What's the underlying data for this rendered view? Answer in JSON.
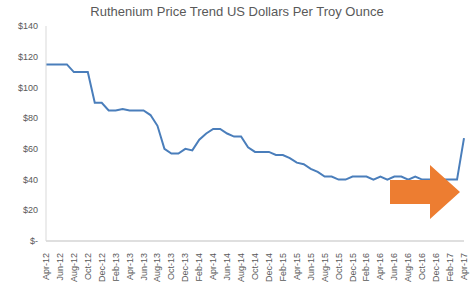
{
  "chart_data": {
    "type": "line",
    "title": "Ruthenium Price Trend US Dollars Per Troy Ounce",
    "categories": [
      "Apr-12",
      null,
      "Jun-12",
      null,
      "Aug-12",
      null,
      "Oct-12",
      null,
      "Dec-12",
      null,
      "Feb-13",
      null,
      "Apr-13",
      null,
      "Jun-13",
      null,
      "Aug-13",
      null,
      "Oct-13",
      null,
      "Dec-13",
      null,
      "Feb-14",
      null,
      "Apr-14",
      null,
      "Jun-14",
      null,
      "Aug-14",
      null,
      "Oct-14",
      null,
      "Dec-14",
      null,
      "Feb-15",
      null,
      "Apr-15",
      null,
      "Jun-15",
      null,
      "Aug-15",
      null,
      "Oct-15",
      null,
      "Dec-15",
      null,
      "Feb-16",
      null,
      "Apr-16",
      null,
      "Jun-16",
      null,
      "Aug-16",
      null,
      "Oct-16",
      null,
      "Dec-16",
      null,
      "Feb-17",
      null,
      "Apr-17"
    ],
    "values": [
      115,
      115,
      115,
      115,
      110,
      110,
      110,
      90,
      90,
      85,
      85,
      86,
      85,
      85,
      85,
      82,
      75,
      60,
      57,
      57,
      60,
      59,
      66,
      70,
      73,
      73,
      70,
      68,
      68,
      61,
      58,
      58,
      58,
      56,
      56,
      54,
      51,
      50,
      47,
      45,
      42,
      42,
      40,
      40,
      42,
      42,
      42,
      40,
      42,
      40,
      42,
      42,
      40,
      42,
      40,
      40,
      40,
      40,
      40,
      40,
      67
    ],
    "color": "#4a7ebb",
    "ylim": [
      0,
      140
    ],
    "yticks": [
      {
        "value": 0,
        "label": "$-"
      },
      {
        "value": 20,
        "label": "$20"
      },
      {
        "value": 40,
        "label": "$40"
      },
      {
        "value": 60,
        "label": "$60"
      },
      {
        "value": 80,
        "label": "$80"
      },
      {
        "value": 100,
        "label": "$100"
      },
      {
        "value": 120,
        "label": "$120"
      },
      {
        "value": 140,
        "label": "$140"
      }
    ],
    "grid": false
  }
}
